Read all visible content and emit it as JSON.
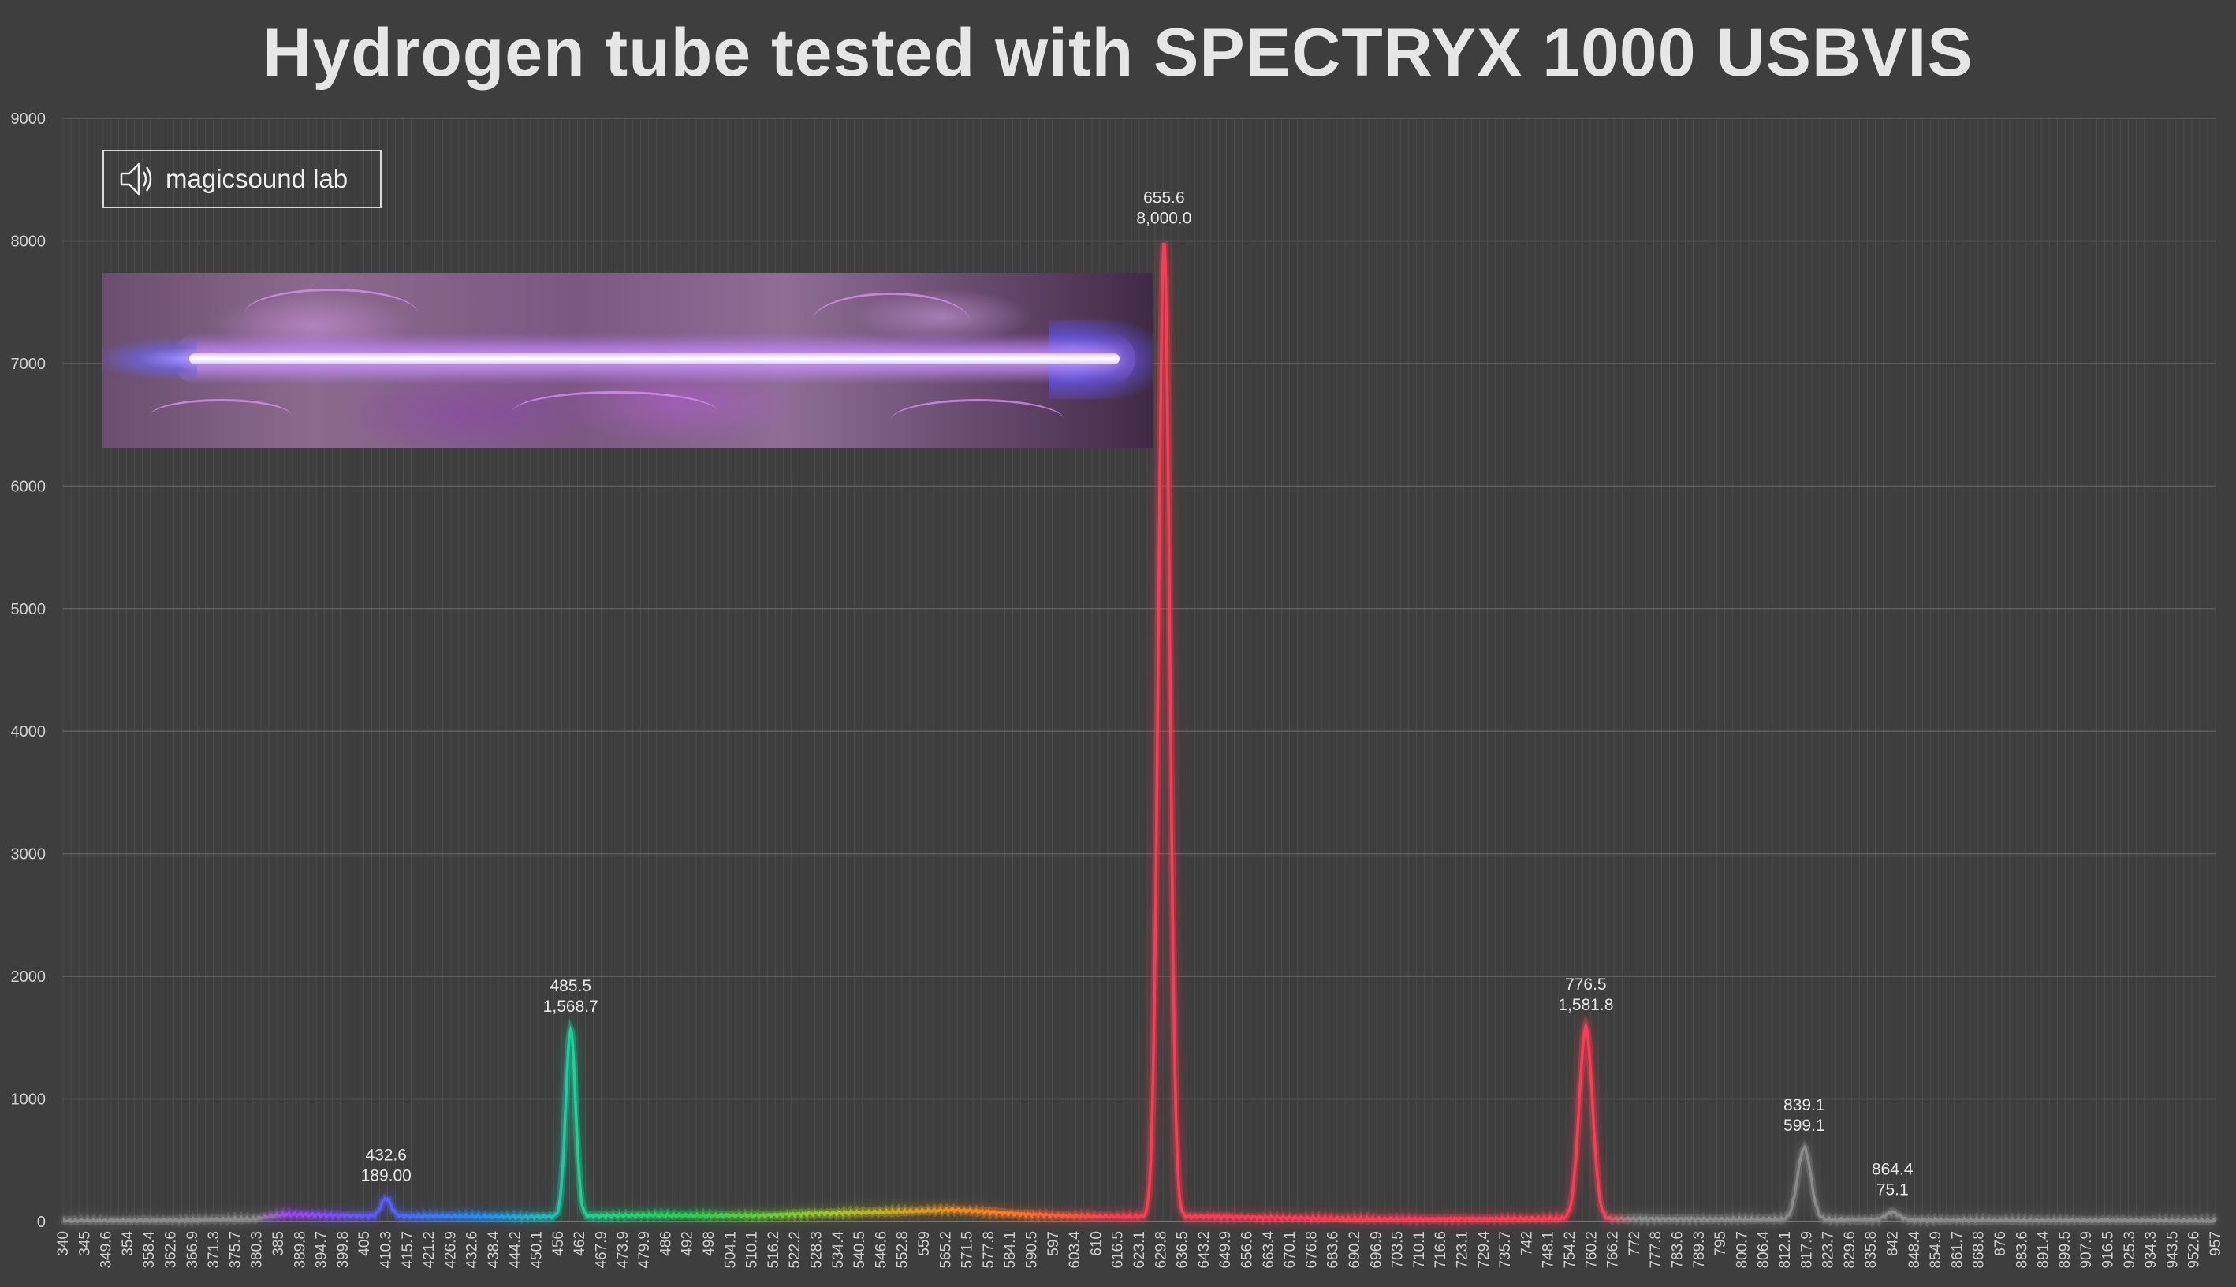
{
  "title": "Hydrogen tube tested with SPECTRYX 1000 USBVIS",
  "logo": {
    "text": "magicsound lab",
    "icon": "speaker-icon"
  },
  "photo": {
    "subject": "hydrogen-tube-glow"
  },
  "colors": {
    "background": "#3e3e3e",
    "grid": "#565656",
    "axis_text": "#d0d0d0",
    "title": "#e6e6e6",
    "infrared_line": "#9a9a9a",
    "h_alpha": "#ff3b52"
  },
  "chart_data": {
    "type": "line",
    "title": "Hydrogen tube tested with SPECTRYX 1000 USBVIS",
    "xlabel": "",
    "ylabel": "",
    "xlim": [
      340,
      957
    ],
    "ylim": [
      0,
      9000
    ],
    "y_ticks": [
      "0",
      "1000",
      "2000",
      "3000",
      "4000",
      "5000",
      "6000",
      "7000",
      "8000",
      "9000"
    ],
    "x_ticks": [
      "340",
      "345",
      "349.6",
      "354",
      "358.4",
      "362.6",
      "366.9",
      "371.3",
      "375.7",
      "380.3",
      "385",
      "389.8",
      "394.7",
      "399.8",
      "405",
      "410.3",
      "415.7",
      "421.2",
      "426.9",
      "432.6",
      "438.4",
      "444.2",
      "450.1",
      "456",
      "462",
      "467.9",
      "473.9",
      "479.9",
      "486",
      "492",
      "498",
      "504.1",
      "510.1",
      "516.2",
      "522.2",
      "528.3",
      "534.4",
      "540.5",
      "546.6",
      "552.8",
      "559",
      "565.2",
      "571.5",
      "577.8",
      "584.1",
      "590.5",
      "597",
      "603.4",
      "610",
      "616.5",
      "623.1",
      "629.8",
      "636.5",
      "643.2",
      "649.9",
      "656.6",
      "663.4",
      "670.1",
      "676.8",
      "683.6",
      "690.2",
      "696.9",
      "703.5",
      "710.1",
      "716.6",
      "723.1",
      "729.4",
      "735.7",
      "742",
      "748.1",
      "754.2",
      "760.2",
      "766.2",
      "772",
      "777.8",
      "783.6",
      "789.3",
      "795",
      "800.7",
      "806.4",
      "812.1",
      "817.9",
      "823.7",
      "829.6",
      "835.8",
      "842",
      "848.4",
      "854.9",
      "861.7",
      "868.8",
      "876",
      "883.6",
      "891.4",
      "899.5",
      "907.9",
      "916.5",
      "925.3",
      "934.3",
      "943.5",
      "952.6",
      "957"
    ],
    "grid": true,
    "peaks": [
      {
        "x": 432.6,
        "y": 189.0,
        "label_x": "432.6",
        "label_y": "189.00",
        "color": "#6a6aff"
      },
      {
        "x": 485.5,
        "y": 1568.7,
        "label_x": "485.5",
        "label_y": "1,568.7",
        "color": "#19d39a"
      },
      {
        "x": 655.6,
        "y": 8000.0,
        "label_x": "655.6",
        "label_y": "8,000.0",
        "color": "#ff3b52"
      },
      {
        "x": 776.5,
        "y": 1581.8,
        "label_x": "776.5",
        "label_y": "1,581.8",
        "color": "#ff3b52"
      },
      {
        "x": 839.1,
        "y": 599.1,
        "label_x": "839.1",
        "label_y": "599.1",
        "color": "#9a9a9a"
      },
      {
        "x": 864.4,
        "y": 75.1,
        "label_x": "864.4",
        "label_y": "75.1",
        "color": "#9a9a9a"
      }
    ],
    "baseline": [
      {
        "x": 340,
        "y": 5
      },
      {
        "x": 360,
        "y": 8
      },
      {
        "x": 380,
        "y": 14
      },
      {
        "x": 395,
        "y": 22
      },
      {
        "x": 400,
        "y": 45
      },
      {
        "x": 405,
        "y": 60
      },
      {
        "x": 415,
        "y": 52
      },
      {
        "x": 425,
        "y": 48
      },
      {
        "x": 440,
        "y": 45
      },
      {
        "x": 455,
        "y": 42
      },
      {
        "x": 470,
        "y": 38
      },
      {
        "x": 480,
        "y": 40
      },
      {
        "x": 495,
        "y": 48
      },
      {
        "x": 510,
        "y": 52
      },
      {
        "x": 525,
        "y": 48
      },
      {
        "x": 540,
        "y": 50
      },
      {
        "x": 555,
        "y": 65
      },
      {
        "x": 570,
        "y": 75
      },
      {
        "x": 585,
        "y": 85
      },
      {
        "x": 595,
        "y": 95
      },
      {
        "x": 605,
        "y": 80
      },
      {
        "x": 615,
        "y": 60
      },
      {
        "x": 630,
        "y": 45
      },
      {
        "x": 640,
        "y": 40
      },
      {
        "x": 670,
        "y": 40
      },
      {
        "x": 690,
        "y": 30
      },
      {
        "x": 710,
        "y": 22
      },
      {
        "x": 730,
        "y": 20
      },
      {
        "x": 750,
        "y": 22
      },
      {
        "x": 770,
        "y": 25
      },
      {
        "x": 790,
        "y": 22
      },
      {
        "x": 810,
        "y": 20
      },
      {
        "x": 830,
        "y": 18
      },
      {
        "x": 850,
        "y": 15
      },
      {
        "x": 880,
        "y": 12
      },
      {
        "x": 910,
        "y": 10
      },
      {
        "x": 940,
        "y": 8
      },
      {
        "x": 957,
        "y": 6
      }
    ],
    "color_stops": [
      {
        "x": 340,
        "color": "#8a8a8a"
      },
      {
        "x": 395,
        "color": "#8a8a8a"
      },
      {
        "x": 405,
        "color": "#a040ff"
      },
      {
        "x": 430,
        "color": "#5a5aff"
      },
      {
        "x": 460,
        "color": "#1e90ff"
      },
      {
        "x": 486,
        "color": "#19d39a"
      },
      {
        "x": 520,
        "color": "#1fd34a"
      },
      {
        "x": 560,
        "color": "#a0c81e"
      },
      {
        "x": 585,
        "color": "#d99b1a"
      },
      {
        "x": 610,
        "color": "#ff7a1a"
      },
      {
        "x": 640,
        "color": "#ff3b52"
      },
      {
        "x": 780,
        "color": "#ff3b52"
      },
      {
        "x": 790,
        "color": "#8a8a8a"
      },
      {
        "x": 957,
        "color": "#8a8a8a"
      }
    ]
  }
}
